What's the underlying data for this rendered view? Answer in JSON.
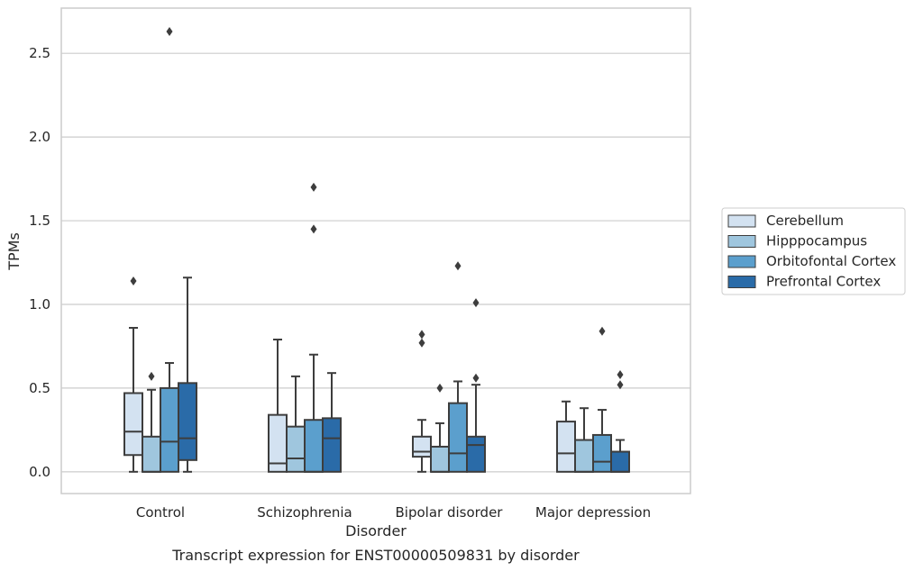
{
  "chart_data": {
    "type": "box",
    "xlabel": "Disorder",
    "ylabel": "TPMs",
    "caption": "Transcript expression for ENST00000509831 by disorder",
    "ylim": [
      -0.13,
      2.77
    ],
    "yticks": [
      "0.0",
      "0.5",
      "1.0",
      "1.5",
      "2.0",
      "2.5"
    ],
    "grid": "horizontal",
    "legend_position": "right",
    "categories": [
      "Control",
      "Schizophrenia",
      "Bipolar disorder",
      "Major depression"
    ],
    "series": [
      {
        "name": "Cerebellum",
        "color": "#d3e2f1",
        "boxes": [
          {
            "q1": 0.1,
            "median": 0.24,
            "q3": 0.47,
            "whislo": 0.0,
            "whishi": 0.86,
            "fliers": [
              1.14
            ]
          },
          {
            "q1": 0.0,
            "median": 0.05,
            "q3": 0.34,
            "whislo": 0.0,
            "whishi": 0.79,
            "fliers": []
          },
          {
            "q1": 0.09,
            "median": 0.12,
            "q3": 0.21,
            "whislo": 0.0,
            "whishi": 0.31,
            "fliers": [
              0.77,
              0.82
            ]
          },
          {
            "q1": 0.0,
            "median": 0.11,
            "q3": 0.3,
            "whislo": 0.0,
            "whishi": 0.42,
            "fliers": []
          }
        ]
      },
      {
        "name": "Hipppocampus",
        "color": "#9fc6de",
        "boxes": [
          {
            "q1": 0.0,
            "median": 0.0,
            "q3": 0.21,
            "whislo": 0.0,
            "whishi": 0.49,
            "fliers": [
              0.57
            ]
          },
          {
            "q1": 0.0,
            "median": 0.08,
            "q3": 0.27,
            "whislo": 0.0,
            "whishi": 0.57,
            "fliers": []
          },
          {
            "q1": 0.0,
            "median": 0.0,
            "q3": 0.15,
            "whislo": 0.0,
            "whishi": 0.29,
            "fliers": [
              0.5
            ]
          },
          {
            "q1": 0.0,
            "median": 0.0,
            "q3": 0.19,
            "whislo": 0.0,
            "whishi": 0.38,
            "fliers": []
          }
        ]
      },
      {
        "name": "Orbitofontal Cortex",
        "color": "#5b9fcd",
        "boxes": [
          {
            "q1": 0.0,
            "median": 0.18,
            "q3": 0.5,
            "whislo": 0.0,
            "whishi": 0.65,
            "fliers": [
              2.63
            ]
          },
          {
            "q1": 0.0,
            "median": 0.0,
            "q3": 0.31,
            "whislo": 0.0,
            "whishi": 0.7,
            "fliers": [
              1.45,
              1.7
            ]
          },
          {
            "q1": 0.0,
            "median": 0.11,
            "q3": 0.41,
            "whislo": 0.0,
            "whishi": 0.54,
            "fliers": [
              1.23
            ]
          },
          {
            "q1": 0.0,
            "median": 0.06,
            "q3": 0.22,
            "whislo": 0.0,
            "whishi": 0.37,
            "fliers": [
              0.84
            ]
          }
        ]
      },
      {
        "name": "Prefrontal Cortex",
        "color": "#2a6ba8",
        "boxes": [
          {
            "q1": 0.07,
            "median": 0.2,
            "q3": 0.53,
            "whislo": 0.0,
            "whishi": 1.16,
            "fliers": []
          },
          {
            "q1": 0.0,
            "median": 0.2,
            "q3": 0.32,
            "whislo": 0.0,
            "whishi": 0.59,
            "fliers": []
          },
          {
            "q1": 0.0,
            "median": 0.16,
            "q3": 0.21,
            "whislo": 0.0,
            "whishi": 0.52,
            "fliers": [
              0.56,
              1.01
            ]
          },
          {
            "q1": 0.0,
            "median": 0.0,
            "q3": 0.12,
            "whislo": 0.0,
            "whishi": 0.19,
            "fliers": [
              0.52,
              0.58
            ]
          }
        ]
      }
    ]
  }
}
